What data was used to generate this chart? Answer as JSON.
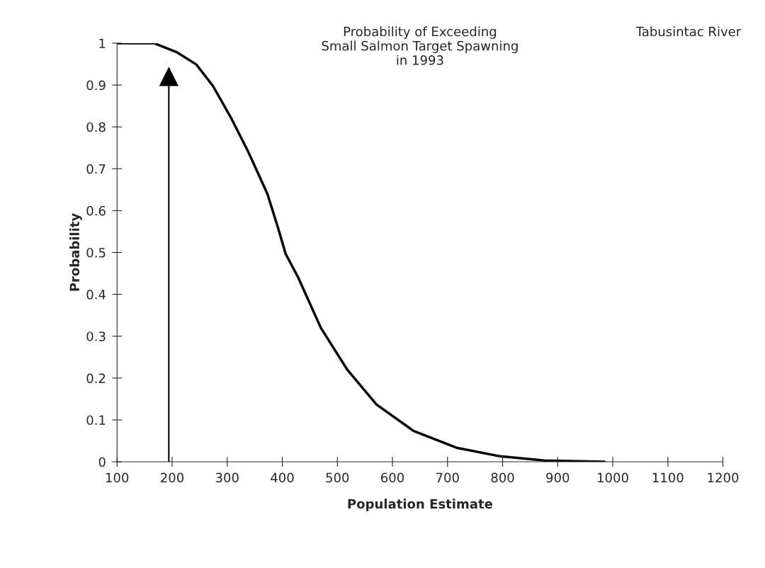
{
  "chart_data": {
    "type": "line",
    "title": "Probability of Exceeding\nSmall Salmon Target Spawning\nin 1993",
    "xlabel": "Population Estimate",
    "ylabel": "Probability",
    "annotations": [
      "Tabusintac River"
    ],
    "series": [
      {
        "color": "#000000",
        "x": [
          100,
          167,
          209,
          244,
          274,
          308,
          338,
          373,
          392,
          406,
          429,
          470,
          518,
          571,
          638,
          718,
          796,
          876,
          985
        ],
        "values": [
          1.0,
          1.0,
          0.978,
          0.949,
          0.898,
          0.819,
          0.741,
          0.64,
          0.56,
          0.497,
          0.44,
          0.32,
          0.22,
          0.137,
          0.074,
          0.033,
          0.013,
          0.003,
          0.0
        ]
      },
      {
        "type": "line",
        "marker": "triangle",
        "color": "#000000",
        "x": [
          194,
          194
        ],
        "values": [
          0,
          0.92
        ]
      }
    ],
    "xlim": [
      100,
      1200
    ],
    "xticks": [
      100,
      200,
      300,
      400,
      500,
      600,
      700,
      800,
      900,
      1000,
      1100,
      1200
    ],
    "ylim": [
      0,
      1
    ],
    "yticks": [
      0,
      0.1,
      0.2,
      0.3,
      0.4,
      0.5,
      0.6,
      0.7,
      0.8,
      0.9,
      1
    ],
    "grid": false,
    "legend": false
  }
}
